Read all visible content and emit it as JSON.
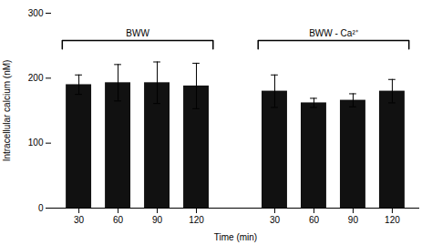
{
  "chart_data": {
    "type": "bar",
    "xlabel": "Time (min)",
    "ylabel": "Intracellular calcium (nM)",
    "color": "#111111",
    "ylim": [
      0,
      300
    ],
    "yticks": [
      0,
      100,
      200,
      300
    ],
    "groups": [
      {
        "name": "BWW",
        "categories": [
          "30",
          "60",
          "90",
          "120"
        ],
        "values": [
          190,
          193,
          193,
          188
        ],
        "errors": [
          15,
          28,
          32,
          35
        ]
      },
      {
        "name": "BWW - Ca²⁺",
        "categories": [
          "30",
          "60",
          "90",
          "120"
        ],
        "values": [
          180,
          162,
          166,
          180
        ],
        "errors": [
          25,
          7,
          10,
          18
        ]
      }
    ]
  }
}
